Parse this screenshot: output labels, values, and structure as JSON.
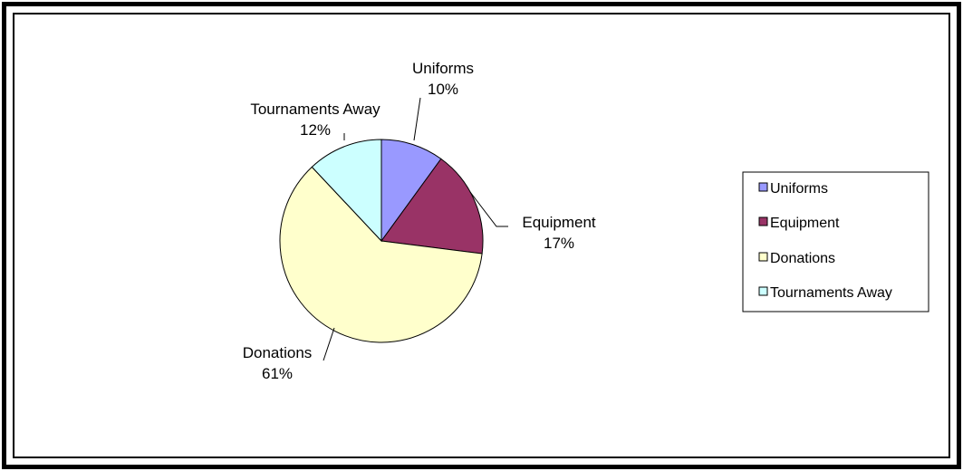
{
  "chart_data": {
    "type": "pie",
    "title": "",
    "slices": [
      {
        "label": "Uniforms",
        "value": 10,
        "pct_label": "10%",
        "color": "#9999FF"
      },
      {
        "label": "Equipment",
        "value": 17,
        "pct_label": "17%",
        "color": "#993366"
      },
      {
        "label": "Donations",
        "value": 61,
        "pct_label": "61%",
        "color": "#FFFFCC"
      },
      {
        "label": "Tournaments Away",
        "value": 12,
        "pct_label": "12%",
        "color": "#CCFFFF"
      }
    ],
    "legend_position": "right",
    "start_angle": "12 o'clock",
    "direction": "clockwise"
  }
}
